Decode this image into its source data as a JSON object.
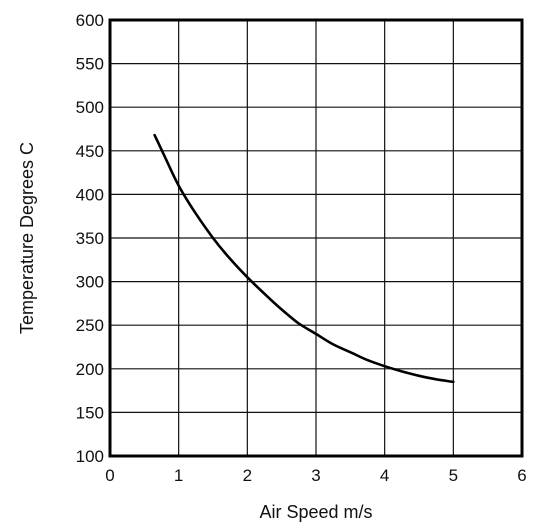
{
  "chart_data": {
    "type": "line",
    "title": "",
    "xlabel": "Air Speed m/s",
    "ylabel": "Temperature Degrees C",
    "xlim": [
      0,
      6
    ],
    "ylim": [
      100,
      600
    ],
    "xticks": [
      0,
      1,
      2,
      3,
      4,
      5,
      6
    ],
    "yticks": [
      100,
      150,
      200,
      250,
      300,
      350,
      400,
      450,
      500,
      550,
      600
    ],
    "grid": true,
    "legend": "none",
    "series": [
      {
        "x": [
          0.65,
          0.8,
          1.0,
          1.25,
          1.5,
          1.75,
          2.0,
          2.25,
          2.5,
          2.75,
          3.0,
          3.25,
          3.5,
          3.75,
          4.0,
          4.25,
          4.5,
          4.75,
          5.0
        ],
        "values": [
          468,
          443,
          410,
          378,
          350,
          326,
          305,
          286,
          268,
          252,
          240,
          228,
          219,
          210,
          203,
          197,
          192,
          188,
          185
        ],
        "color": "#000000"
      }
    ]
  }
}
